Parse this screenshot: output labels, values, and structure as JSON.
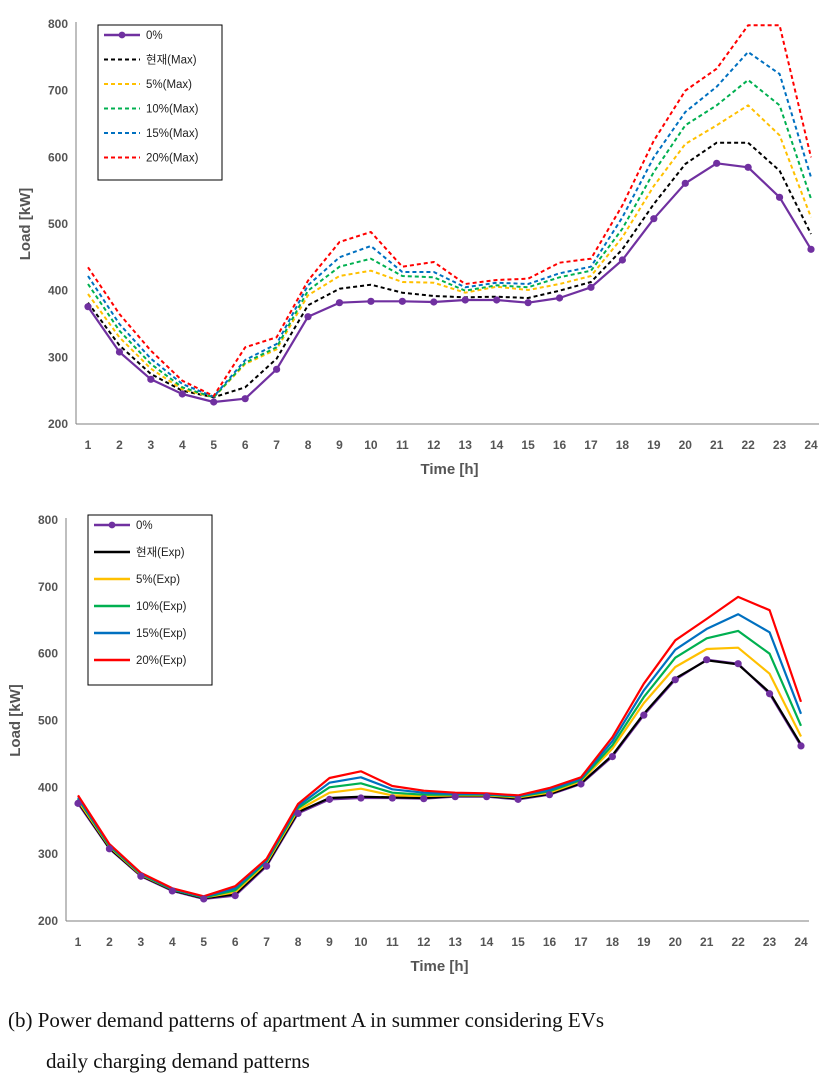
{
  "chart_data": [
    {
      "type": "line",
      "xlabel": "Time [h]",
      "ylabel": "Load [kW]",
      "ylim": [
        200,
        800
      ],
      "yticks": [
        200,
        300,
        400,
        500,
        600,
        700,
        800
      ],
      "x": [
        1,
        2,
        3,
        4,
        5,
        6,
        7,
        8,
        9,
        10,
        11,
        12,
        13,
        14,
        15,
        16,
        17,
        18,
        19,
        20,
        21,
        22,
        23,
        24
      ],
      "grid": false,
      "legend_position": "top-left",
      "series": [
        {
          "name": "0%",
          "color": "#7030a0",
          "style": "solid-marker",
          "values": [
            376,
            308,
            267,
            245,
            233,
            238,
            282,
            361,
            382,
            384,
            384,
            383,
            386,
            386,
            382,
            389,
            405,
            446,
            508,
            561,
            591,
            585,
            540,
            462
          ]
        },
        {
          "name": "현재(Max)",
          "color": "#000000",
          "style": "dashed",
          "values": [
            382,
            318,
            275,
            250,
            240,
            255,
            298,
            378,
            403,
            409,
            397,
            392,
            390,
            391,
            389,
            400,
            413,
            462,
            530,
            590,
            622,
            622,
            580,
            485
          ]
        },
        {
          "name": "5%(Max)",
          "color": "#ffc000",
          "style": "dashed",
          "values": [
            395,
            330,
            283,
            252,
            240,
            290,
            312,
            393,
            422,
            430,
            413,
            412,
            397,
            406,
            401,
            410,
            422,
            480,
            557,
            620,
            648,
            678,
            633,
            510
          ]
        },
        {
          "name": "10%(Max)",
          "color": "#00b050",
          "style": "dashed",
          "values": [
            410,
            340,
            290,
            255,
            240,
            292,
            315,
            400,
            436,
            448,
            422,
            420,
            400,
            408,
            405,
            420,
            430,
            493,
            578,
            648,
            678,
            716,
            678,
            538
          ]
        },
        {
          "name": "15%(Max)",
          "color": "#0070c0",
          "style": "dashed",
          "values": [
            422,
            350,
            298,
            260,
            241,
            296,
            320,
            408,
            450,
            467,
            428,
            428,
            405,
            412,
            410,
            426,
            436,
            510,
            600,
            668,
            706,
            758,
            725,
            570
          ]
        },
        {
          "name": "20%(Max)",
          "color": "#ff0000",
          "style": "dashed",
          "values": [
            435,
            365,
            310,
            265,
            242,
            315,
            330,
            415,
            473,
            488,
            436,
            443,
            410,
            416,
            418,
            442,
            448,
            528,
            625,
            700,
            733,
            798,
            798,
            600
          ]
        }
      ]
    },
    {
      "type": "line",
      "xlabel": "Time [h]",
      "ylabel": "Load [kW]",
      "ylim": [
        200,
        800
      ],
      "yticks": [
        200,
        300,
        400,
        500,
        600,
        700,
        800
      ],
      "x": [
        1,
        2,
        3,
        4,
        5,
        6,
        7,
        8,
        9,
        10,
        11,
        12,
        13,
        14,
        15,
        16,
        17,
        18,
        19,
        20,
        21,
        22,
        23,
        24
      ],
      "grid": false,
      "legend_position": "top-left",
      "series": [
        {
          "name": "0%",
          "color": "#7030a0",
          "style": "solid-marker",
          "values": [
            376,
            308,
            267,
            245,
            233,
            238,
            282,
            361,
            382,
            384,
            384,
            383,
            386,
            386,
            382,
            389,
            405,
            446,
            508,
            561,
            591,
            585,
            540,
            462
          ]
        },
        {
          "name": "현재(Exp)",
          "color": "#000000",
          "style": "solid",
          "values": [
            378,
            309,
            268,
            246,
            234,
            240,
            284,
            363,
            384,
            386,
            385,
            384,
            387,
            387,
            383,
            390,
            406,
            448,
            510,
            563,
            590,
            584,
            542,
            464
          ]
        },
        {
          "name": "5%(Exp)",
          "color": "#ffc000",
          "style": "solid",
          "values": [
            380,
            311,
            269,
            247,
            235,
            243,
            287,
            366,
            392,
            398,
            388,
            387,
            388,
            388,
            385,
            392,
            409,
            458,
            526,
            580,
            607,
            609,
            570,
            476
          ]
        },
        {
          "name": "10%(Exp)",
          "color": "#00b050",
          "style": "solid",
          "values": [
            383,
            312,
            270,
            247,
            235,
            246,
            289,
            369,
            400,
            406,
            392,
            389,
            389,
            389,
            386,
            394,
            411,
            463,
            535,
            594,
            623,
            634,
            600,
            492
          ]
        },
        {
          "name": "15%(Exp)",
          "color": "#0070c0",
          "style": "solid",
          "values": [
            385,
            314,
            271,
            248,
            236,
            249,
            291,
            372,
            407,
            415,
            397,
            392,
            390,
            390,
            387,
            396,
            413,
            469,
            545,
            606,
            637,
            659,
            632,
            510
          ]
        },
        {
          "name": "20%(Exp)",
          "color": "#ff0000",
          "style": "solid",
          "values": [
            388,
            315,
            272,
            249,
            237,
            252,
            293,
            375,
            414,
            424,
            402,
            395,
            392,
            391,
            388,
            399,
            415,
            475,
            555,
            620,
            652,
            685,
            665,
            528
          ]
        }
      ]
    }
  ],
  "caption": {
    "line1": "(b) Power demand patterns of apartment A in summer considering EVs",
    "line2": "daily charging demand patterns"
  }
}
